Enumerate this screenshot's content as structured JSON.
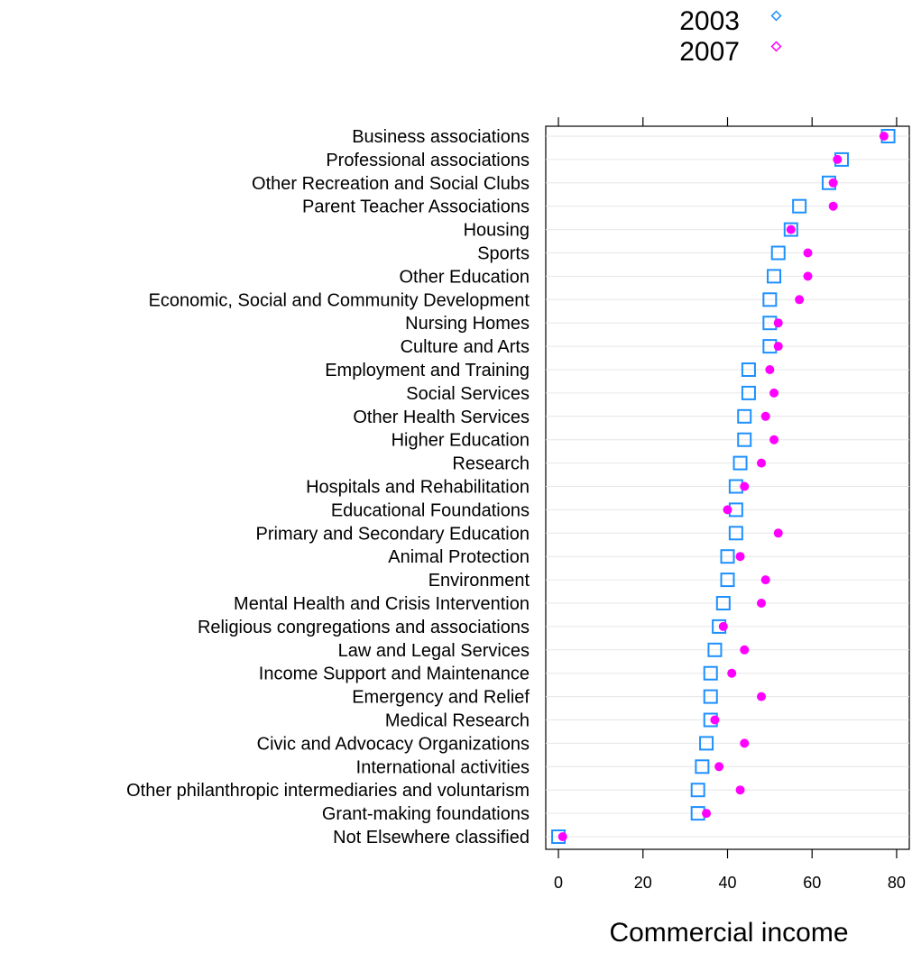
{
  "chart_data": {
    "type": "scatter",
    "subtype": "dotplot",
    "title": "",
    "xlabel": "Commercial income",
    "ylabel": "",
    "xlim": [
      -3,
      83
    ],
    "x_ticks": [
      0,
      20,
      40,
      60,
      80
    ],
    "x_tick_labels": [
      "0",
      "20",
      "40",
      "60",
      "80"
    ],
    "grid": true,
    "legend_position": "top-right",
    "categories": [
      "Business associations",
      "Professional associations",
      "Other Recreation and Social Clubs",
      "Parent Teacher Associations",
      "Housing",
      "Sports",
      "Other Education",
      "Economic, Social and Community Development",
      "Nursing Homes",
      "Culture and Arts",
      "Employment and Training",
      "Social Services",
      "Other Health Services",
      "Higher Education",
      "Research",
      "Hospitals and Rehabilitation",
      "Educational Foundations",
      "Primary and Secondary Education",
      "Animal Protection",
      "Environment",
      "Mental Health and Crisis Intervention",
      "Religious congregations and associations",
      "Law and Legal Services",
      "Income Support and Maintenance",
      "Emergency and Relief",
      "Medical Research",
      "Civic and Advocacy Organizations",
      "International activities",
      "Other philanthropic intermediaries and voluntarism",
      "Grant-making foundations",
      "Not Elsewhere classified"
    ],
    "series": [
      {
        "name": "2003",
        "color": "#1e90ff",
        "marker": "square",
        "values": [
          78,
          67,
          64,
          57,
          55,
          52,
          51,
          50,
          50,
          50,
          45,
          45,
          44,
          44,
          43,
          42,
          42,
          42,
          40,
          40,
          39,
          38,
          37,
          36,
          36,
          36,
          35,
          34,
          33,
          33,
          0
        ]
      },
      {
        "name": "2007",
        "color": "#ff00ff",
        "marker": "dot",
        "values": [
          77,
          66,
          65,
          65,
          55,
          59,
          59,
          57,
          52,
          52,
          50,
          51,
          49,
          51,
          48,
          44,
          40,
          52,
          43,
          49,
          48,
          39,
          44,
          41,
          48,
          37,
          44,
          38,
          43,
          35,
          1
        ]
      }
    ]
  }
}
